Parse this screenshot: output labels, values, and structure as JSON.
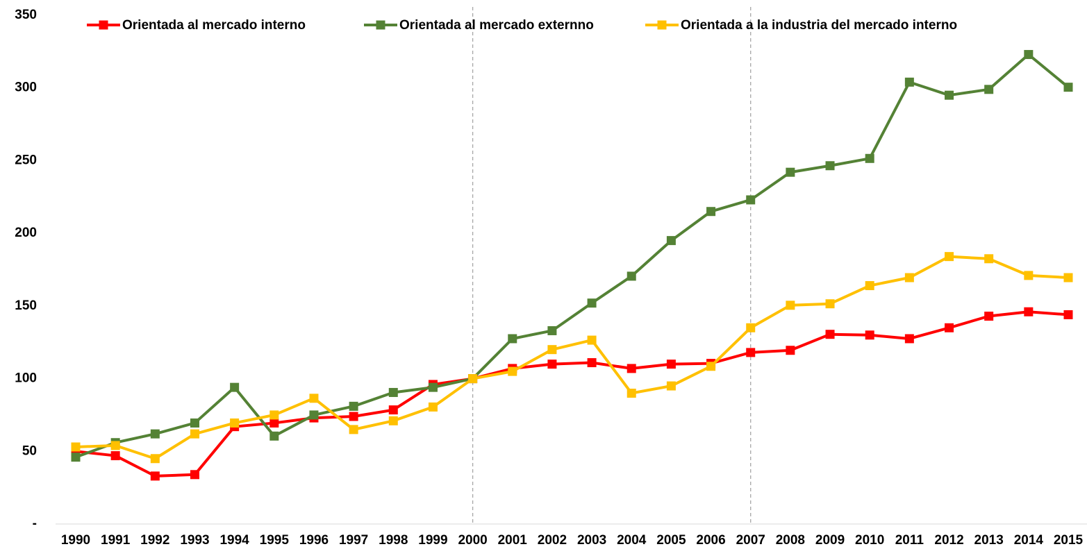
{
  "chart_data": {
    "type": "line",
    "x": [
      1990,
      1991,
      1992,
      1993,
      1994,
      1995,
      1996,
      1997,
      1998,
      1999,
      2000,
      2001,
      2002,
      2003,
      2004,
      2005,
      2006,
      2007,
      2008,
      2009,
      2010,
      2011,
      2012,
      2013,
      2014,
      2015
    ],
    "series": [
      {
        "name": "Orientada al mercado interno",
        "color": "#ff0000",
        "values": [
          50,
          47,
          33,
          34,
          67,
          69.5,
          73,
          74,
          78.5,
          96,
          100,
          107,
          110,
          111,
          107,
          110,
          110.5,
          118,
          119.5,
          130.5,
          130,
          127.5,
          135,
          143,
          146,
          144
        ]
      },
      {
        "name": "Orientada al mercado externno",
        "color": "#548235",
        "values": [
          46,
          56,
          62,
          69.5,
          94,
          60.5,
          75,
          81,
          90.5,
          94,
          100,
          127.5,
          133,
          152,
          170.5,
          195,
          215,
          223,
          242,
          246.5,
          251.5,
          304,
          295,
          299,
          323,
          300.5
        ]
      },
      {
        "name": "Orientada a la industria del mercado interno",
        "color": "#ffc000",
        "values": [
          53,
          54,
          45,
          62,
          69.5,
          75,
          86.5,
          65,
          71,
          80.5,
          100,
          105,
          120,
          126.5,
          90,
          95,
          108.5,
          135,
          150.5,
          151.5,
          164,
          169.5,
          184,
          182.5,
          171,
          169.5
        ]
      }
    ],
    "xlim": [
      1990,
      2015
    ],
    "ylim": [
      0,
      350
    ],
    "yticks": [
      {
        "value": 0,
        "label": "-"
      },
      50,
      100,
      150,
      200,
      250,
      300,
      350
    ],
    "reference_lines": [
      2000,
      2007
    ],
    "grid": false,
    "legend": "top"
  }
}
